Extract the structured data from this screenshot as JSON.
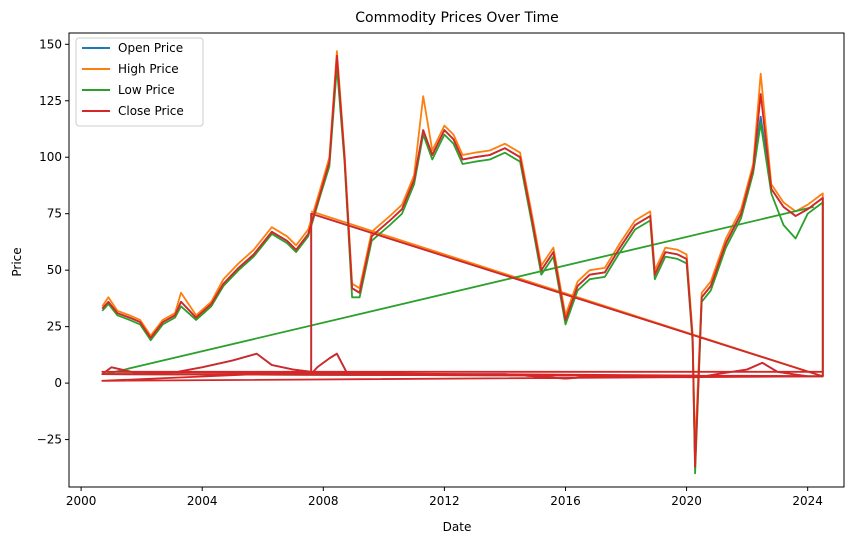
{
  "chart_data": {
    "type": "line",
    "title": "Commodity Prices Over Time",
    "xlabel": "Date",
    "ylabel": "Price",
    "xlim": [
      1999.6,
      2025.2
    ],
    "ylim": [
      -46,
      155
    ],
    "x_ticks": [
      2000,
      2004,
      2008,
      2012,
      2016,
      2020,
      2024
    ],
    "x_tick_labels": [
      "2000",
      "2004",
      "2008",
      "2012",
      "2016",
      "2020",
      "2024"
    ],
    "y_ticks": [
      -25,
      0,
      25,
      50,
      75,
      100,
      125,
      150
    ],
    "y_tick_labels": [
      "−25",
      "0",
      "25",
      "50",
      "75",
      "100",
      "125",
      "150"
    ],
    "grid": false,
    "legend_position": "top-left",
    "series": [
      {
        "name": "Open Price",
        "color": "#1f77b4",
        "x": [
          2000.7,
          2000.9,
          2001.2,
          2001.6,
          2001.95,
          2002.3,
          2002.7,
          2003.1,
          2003.3,
          2003.8,
          2004.3,
          2004.7,
          2005.2,
          2005.7,
          2006.3,
          2006.8,
          2007.1,
          2007.5,
          2007.9,
          2008.2,
          2008.45,
          2008.7,
          2008.95,
          2009.2,
          2009.6,
          2010.2,
          2010.6,
          2011.0,
          2011.3,
          2011.6,
          2012.0,
          2012.3,
          2012.6,
          2013.0,
          2013.5,
          2014.0,
          2014.5,
          2014.9,
          2015.2,
          2015.6,
          2016.0,
          2016.4,
          2016.8,
          2017.3,
          2017.8,
          2018.3,
          2018.8,
          2018.95,
          2019.3,
          2019.7,
          2020.0,
          2020.2,
          2020.28,
          2020.5,
          2020.8,
          2021.3,
          2021.8,
          2022.2,
          2022.45,
          2022.8,
          2023.2,
          2023.6,
          2024.0,
          2024.3,
          2024.5,
          2024.5,
          2007.6,
          2007.6,
          2007.8,
          2008.2,
          2008.45,
          2008.8,
          2009.4,
          2010.0,
          2011.0,
          2012.0,
          2013.0,
          2014.0,
          2015.0,
          2016.0,
          2017.0,
          2018.0,
          2019.0,
          2020.0,
          2020.28,
          2020.6,
          2021.0,
          2022.0,
          2022.5,
          2023.0,
          2023.5,
          2024.0,
          2024.5,
          2024.5,
          2000.7,
          2001.0,
          2002.0,
          2003.2,
          2004.0,
          2005.0,
          2005.8,
          2006.3,
          2007.0,
          2007.6
        ],
        "y": [
          33,
          36,
          31,
          29,
          27,
          20,
          27,
          30,
          36,
          29,
          35,
          44,
          51,
          57,
          67,
          63,
          59,
          66,
          84,
          98,
          144,
          100,
          42,
          40,
          65,
          72,
          77,
          90,
          112,
          101,
          112,
          108,
          99,
          100,
          101,
          104,
          100,
          72,
          50,
          58,
          28,
          43,
          48,
          49,
          60,
          70,
          74,
          48,
          58,
          57,
          55,
          20,
          -36,
          38,
          43,
          62,
          75,
          95,
          118,
          86,
          78,
          74,
          77,
          80,
          82,
          3,
          75,
          4,
          7,
          11,
          13,
          4,
          4,
          4,
          4,
          4,
          4,
          4,
          3,
          2,
          3,
          3,
          3,
          3,
          3,
          3,
          4,
          6,
          9,
          5,
          4,
          3,
          3,
          3,
          4,
          7,
          4,
          5,
          7,
          10,
          13,
          8,
          6,
          5
        ],
        "v": [
          33,
          36,
          31,
          29,
          27,
          20,
          27,
          30,
          36,
          29,
          35,
          44,
          51,
          57,
          67,
          63,
          59,
          66,
          84,
          98,
          144,
          100,
          42,
          40,
          65,
          72,
          77,
          90,
          112,
          101,
          112,
          108,
          99,
          100,
          101,
          104,
          100,
          72,
          50,
          58,
          28,
          43,
          48,
          49,
          60,
          70,
          74,
          48,
          58,
          57,
          55,
          20,
          -36,
          38,
          43,
          62,
          75,
          95,
          118,
          86,
          78,
          74,
          77,
          80,
          82,
          3,
          75,
          4,
          7,
          11,
          13,
          4,
          4,
          4,
          4,
          4,
          4,
          4,
          3,
          2,
          3,
          3,
          3,
          3,
          3,
          3,
          4,
          6,
          9,
          5,
          4,
          3,
          3,
          3,
          4,
          7,
          4,
          5,
          7,
          10,
          13,
          8,
          6,
          5
        ]
      },
      {
        "name": "High Price",
        "color": "#ff7f0e",
        "x": [
          2000.7,
          2000.9,
          2001.2,
          2001.6,
          2001.95,
          2002.3,
          2002.7,
          2003.1,
          2003.3,
          2003.8,
          2004.3,
          2004.7,
          2005.2,
          2005.7,
          2006.3,
          2006.8,
          2007.1,
          2007.5,
          2007.9,
          2008.2,
          2008.45,
          2008.7,
          2008.95,
          2009.2,
          2009.6,
          2010.2,
          2010.6,
          2011.0,
          2011.3,
          2011.6,
          2012.0,
          2012.3,
          2012.6,
          2013.0,
          2013.5,
          2014.0,
          2014.5,
          2014.9,
          2015.2,
          2015.6,
          2016.0,
          2016.4,
          2016.8,
          2017.3,
          2017.8,
          2018.3,
          2018.8,
          2018.95,
          2019.3,
          2019.7,
          2020.0,
          2020.2,
          2020.28,
          2020.5,
          2020.8,
          2021.3,
          2021.8,
          2022.2,
          2022.45,
          2022.8,
          2023.2,
          2023.6,
          2024.0,
          2024.3,
          2024.5,
          2024.5,
          2007.6
        ],
        "y": [
          34,
          38,
          32,
          30,
          28,
          21,
          28,
          31,
          40,
          30,
          36,
          46,
          53,
          59,
          69,
          65,
          61,
          68,
          86,
          100,
          147,
          102,
          44,
          42,
          67,
          74,
          79,
          92,
          127,
          103,
          114,
          110,
          101,
          102,
          103,
          106,
          102,
          74,
          52,
          60,
          30,
          45,
          50,
          51,
          62,
          72,
          76,
          50,
          60,
          59,
          57,
          22,
          -30,
          40,
          45,
          64,
          77,
          97,
          137,
          88,
          80,
          76,
          79,
          82,
          84,
          3,
          76
        ]
      },
      {
        "name": "Low Price",
        "color": "#2ca02c",
        "x": [
          2000.7,
          2000.9,
          2001.2,
          2001.6,
          2001.95,
          2002.3,
          2002.7,
          2003.1,
          2003.3,
          2003.8,
          2004.3,
          2004.7,
          2005.2,
          2005.7,
          2006.3,
          2006.8,
          2007.1,
          2007.5,
          2007.9,
          2008.2,
          2008.45,
          2008.7,
          2008.95,
          2009.2,
          2009.6,
          2010.2,
          2010.6,
          2011.0,
          2011.3,
          2011.6,
          2012.0,
          2012.3,
          2012.6,
          2013.0,
          2013.5,
          2014.0,
          2014.5,
          2014.9,
          2015.2,
          2015.6,
          2016.0,
          2016.4,
          2016.8,
          2017.3,
          2017.8,
          2018.3,
          2018.8,
          2018.95,
          2019.3,
          2019.7,
          2020.0,
          2020.2,
          2020.28,
          2020.5,
          2020.8,
          2021.3,
          2021.8,
          2022.2,
          2022.45,
          2022.8,
          2023.2,
          2023.6,
          2024.0,
          2024.3,
          2024.5,
          2024.5,
          2000.8,
          2024.2
        ],
        "y": [
          32,
          35,
          30,
          28,
          26,
          19,
          26,
          29,
          34,
          28,
          34,
          43,
          50,
          56,
          66,
          62,
          58,
          65,
          83,
          96,
          140,
          98,
          38,
          38,
          63,
          70,
          75,
          88,
          110,
          99,
          110,
          106,
          97,
          98,
          99,
          102,
          98,
          70,
          48,
          56,
          26,
          41,
          46,
          47,
          58,
          68,
          72,
          46,
          56,
          55,
          53,
          18,
          -40,
          36,
          41,
          60,
          73,
          93,
          115,
          84,
          70,
          64,
          75,
          78,
          80,
          3,
          4,
          78
        ]
      },
      {
        "name": "Close Price",
        "color": "#d62728",
        "x": [
          2000.7,
          2000.9,
          2001.2,
          2001.6,
          2001.95,
          2002.3,
          2002.7,
          2003.1,
          2003.3,
          2003.8,
          2004.3,
          2004.7,
          2005.2,
          2005.7,
          2006.3,
          2006.8,
          2007.1,
          2007.5,
          2007.9,
          2008.2,
          2008.45,
          2008.7,
          2008.95,
          2009.2,
          2009.6,
          2010.2,
          2010.6,
          2011.0,
          2011.3,
          2011.6,
          2012.0,
          2012.3,
          2012.6,
          2013.0,
          2013.5,
          2014.0,
          2014.5,
          2014.9,
          2015.2,
          2015.6,
          2016.0,
          2016.4,
          2016.8,
          2017.3,
          2017.8,
          2018.3,
          2018.8,
          2018.95,
          2019.3,
          2019.7,
          2020.0,
          2020.2,
          2020.28,
          2020.5,
          2020.8,
          2021.3,
          2021.8,
          2022.2,
          2022.45,
          2022.8,
          2023.2,
          2023.6,
          2024.0,
          2024.3,
          2024.5,
          2024.5,
          2007.6,
          2007.6,
          2007.8,
          2008.2,
          2008.45,
          2008.8,
          2009.4,
          2010.0,
          2011.0,
          2012.0,
          2013.0,
          2014.0,
          2015.0,
          2016.0,
          2017.0,
          2018.0,
          2019.0,
          2020.0,
          2020.28,
          2020.6,
          2021.0,
          2022.0,
          2022.5,
          2023.0,
          2023.5,
          2024.0,
          2024.5,
          2024.5,
          2000.7,
          2001.0,
          2002.0,
          2003.2,
          2004.0,
          2005.0,
          2005.8,
          2006.3,
          2007.0,
          2007.6,
          2000.7,
          2024.5,
          2000.7,
          2024.5
        ],
        "y": [
          33,
          36,
          31,
          29,
          27,
          20,
          27,
          30,
          36,
          29,
          35,
          44,
          51,
          57,
          67,
          63,
          59,
          66,
          84,
          98,
          145,
          100,
          42,
          40,
          65,
          72,
          77,
          90,
          112,
          101,
          112,
          108,
          99,
          100,
          101,
          104,
          100,
          72,
          50,
          58,
          28,
          43,
          48,
          49,
          60,
          70,
          74,
          48,
          58,
          57,
          55,
          20,
          -37,
          38,
          43,
          62,
          75,
          95,
          128,
          86,
          78,
          74,
          77,
          80,
          82,
          3,
          75,
          4,
          7,
          11,
          13,
          4,
          4,
          4,
          4,
          4,
          4,
          4,
          3,
          2,
          3,
          3,
          3,
          3,
          3,
          3,
          4,
          6,
          9,
          5,
          4,
          3,
          3,
          3,
          4,
          7,
          4,
          5,
          7,
          10,
          13,
          8,
          6,
          5,
          1,
          3,
          5,
          5
        ]
      }
    ]
  }
}
